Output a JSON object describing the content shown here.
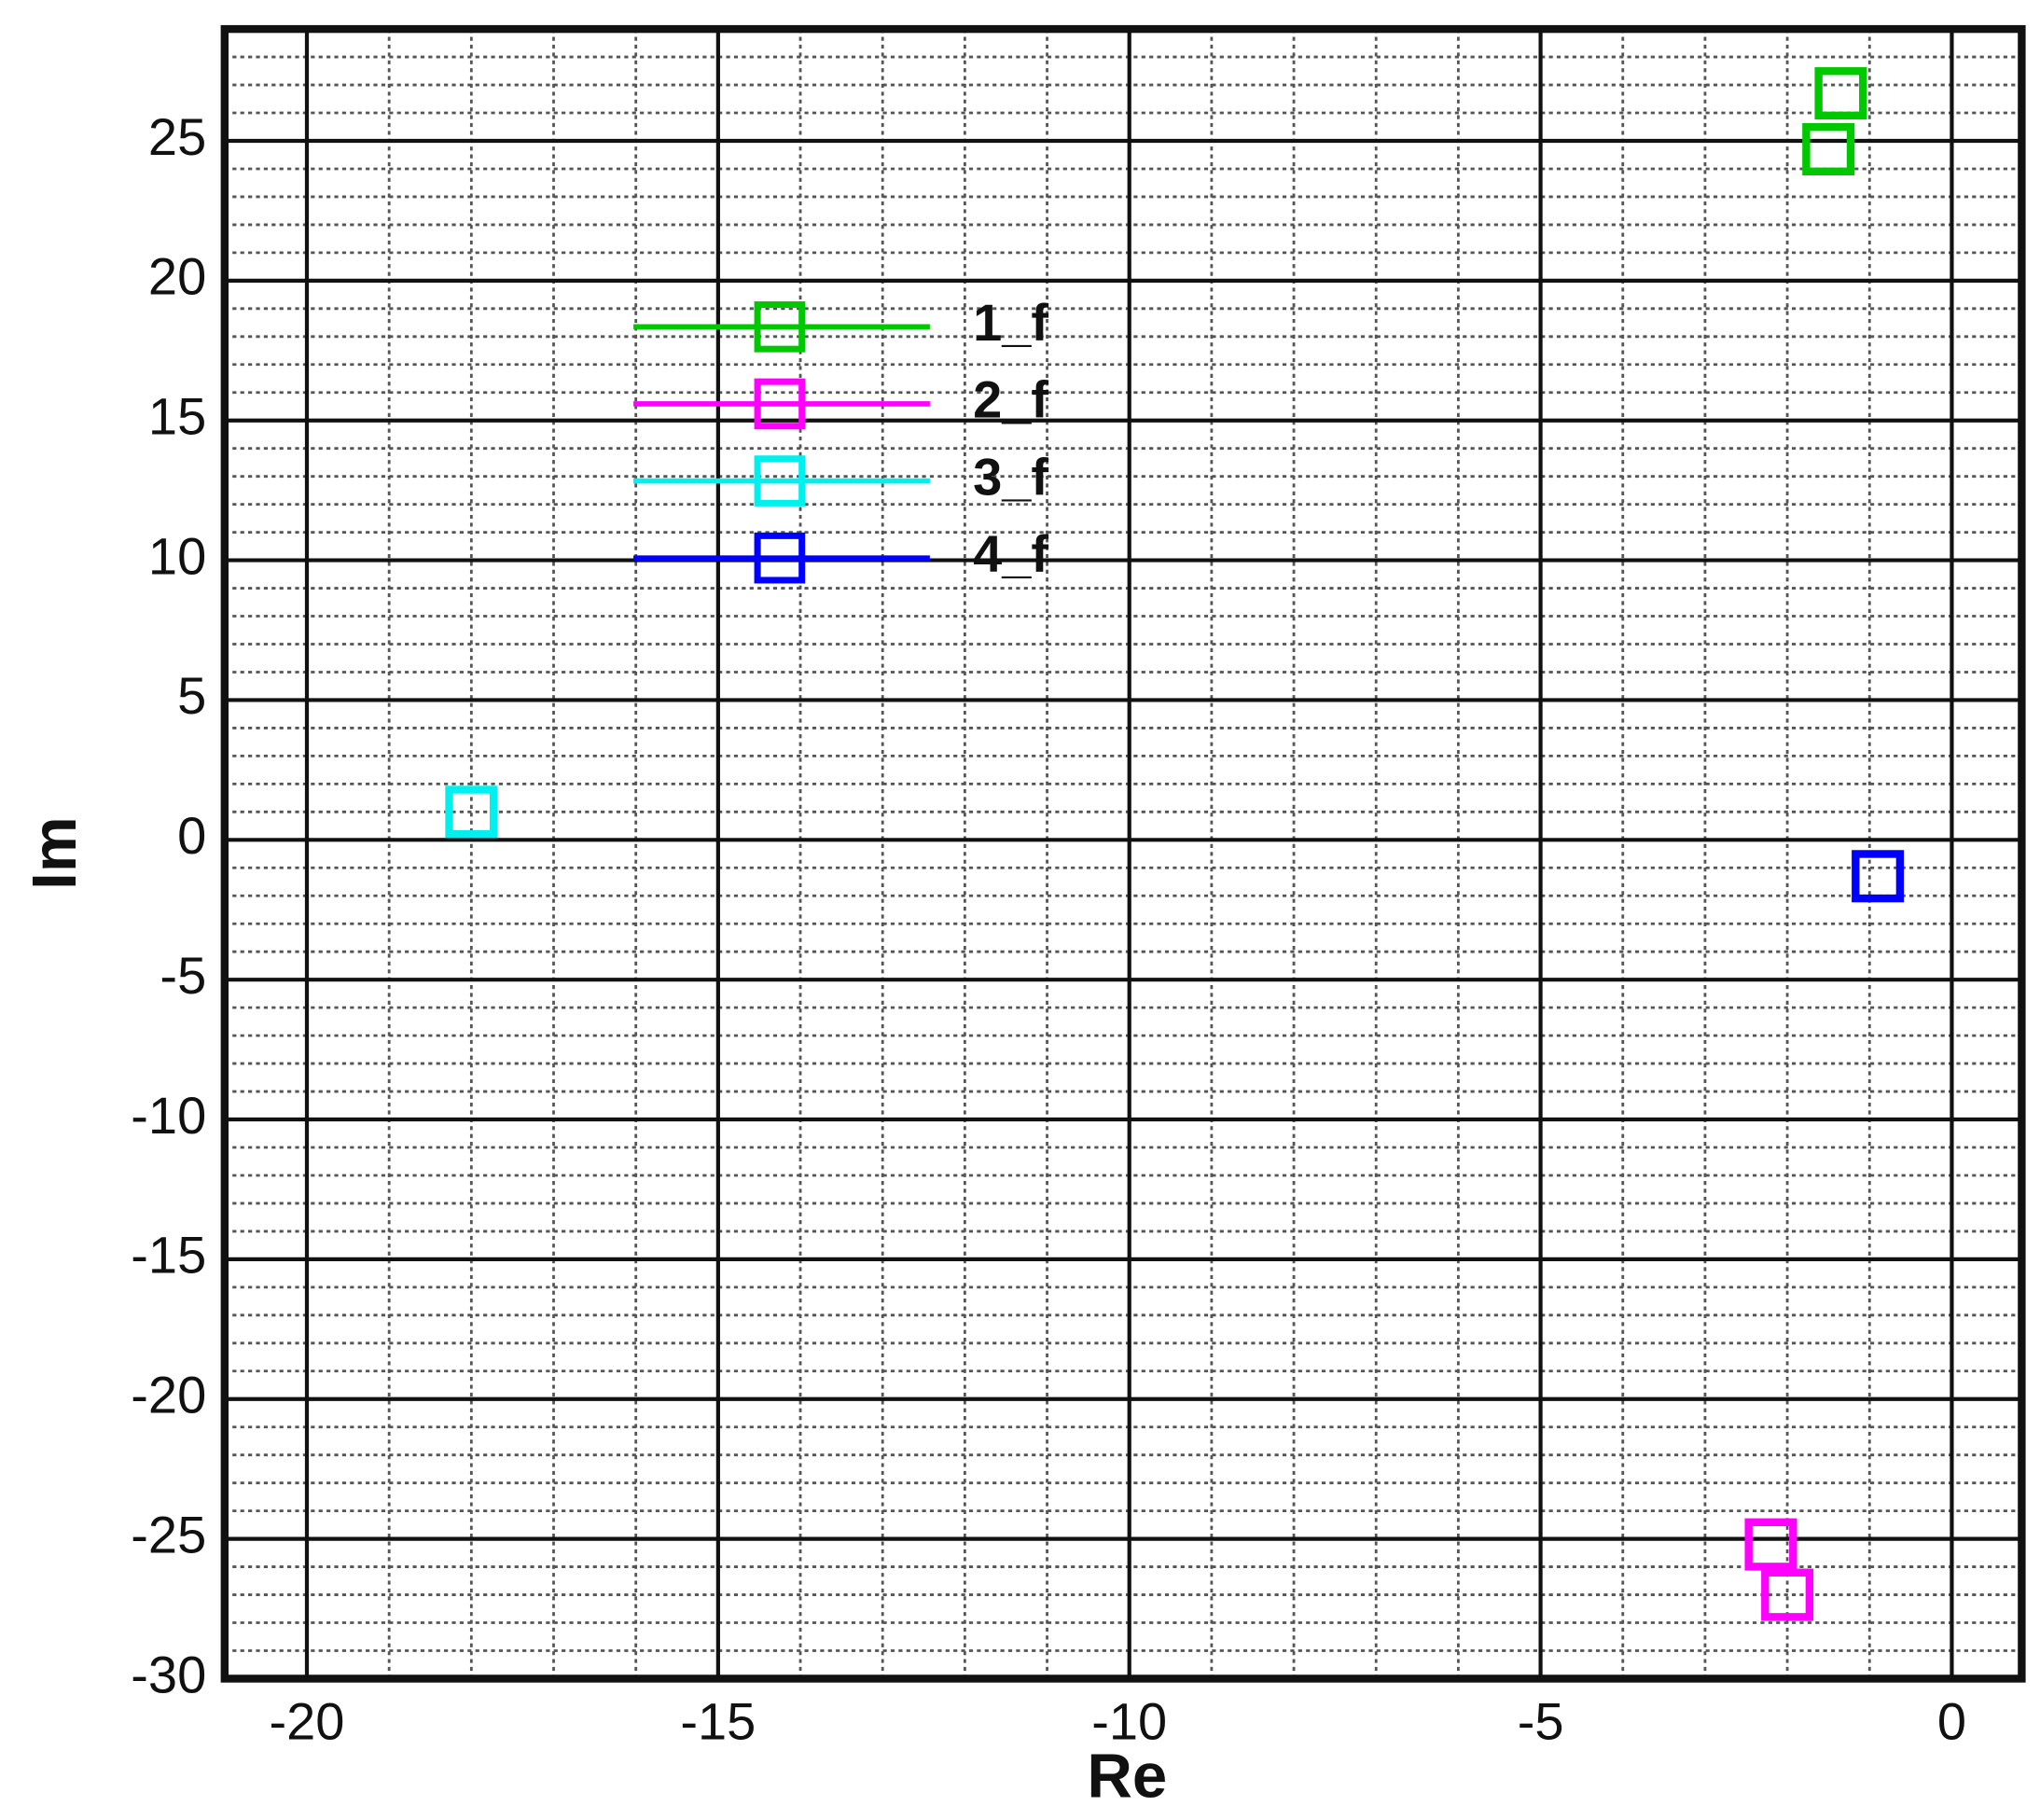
{
  "chart_data": {
    "type": "scatter",
    "xlabel": "Re",
    "ylabel": "Im",
    "xlim": [
      -21,
      0.85
    ],
    "ylim": [
      -30,
      29
    ],
    "xticks": [
      -20,
      -15,
      -10,
      -5,
      0
    ],
    "yticks": [
      -30,
      -25,
      -20,
      -15,
      -10,
      -5,
      0,
      5,
      10,
      15,
      20,
      25
    ],
    "grid": true,
    "minor_grid_step": 1,
    "legend": "upper-left",
    "series": [
      {
        "name": "1_f",
        "color": "#00c800",
        "x": [
          -1.35,
          -1.5
        ],
        "y": [
          26.7,
          24.7
        ]
      },
      {
        "name": "2_f",
        "color": "#ff00ff",
        "x": [
          -2.2,
          -2.0
        ],
        "y": [
          -25.2,
          -27.0
        ]
      },
      {
        "name": "3_f",
        "color": "#00f0f0",
        "x": [
          -18.0
        ],
        "y": [
          1.0
        ]
      },
      {
        "name": "4_f",
        "color": "#0000ff",
        "x": [
          -0.9
        ],
        "y": [
          -1.3
        ]
      }
    ]
  }
}
